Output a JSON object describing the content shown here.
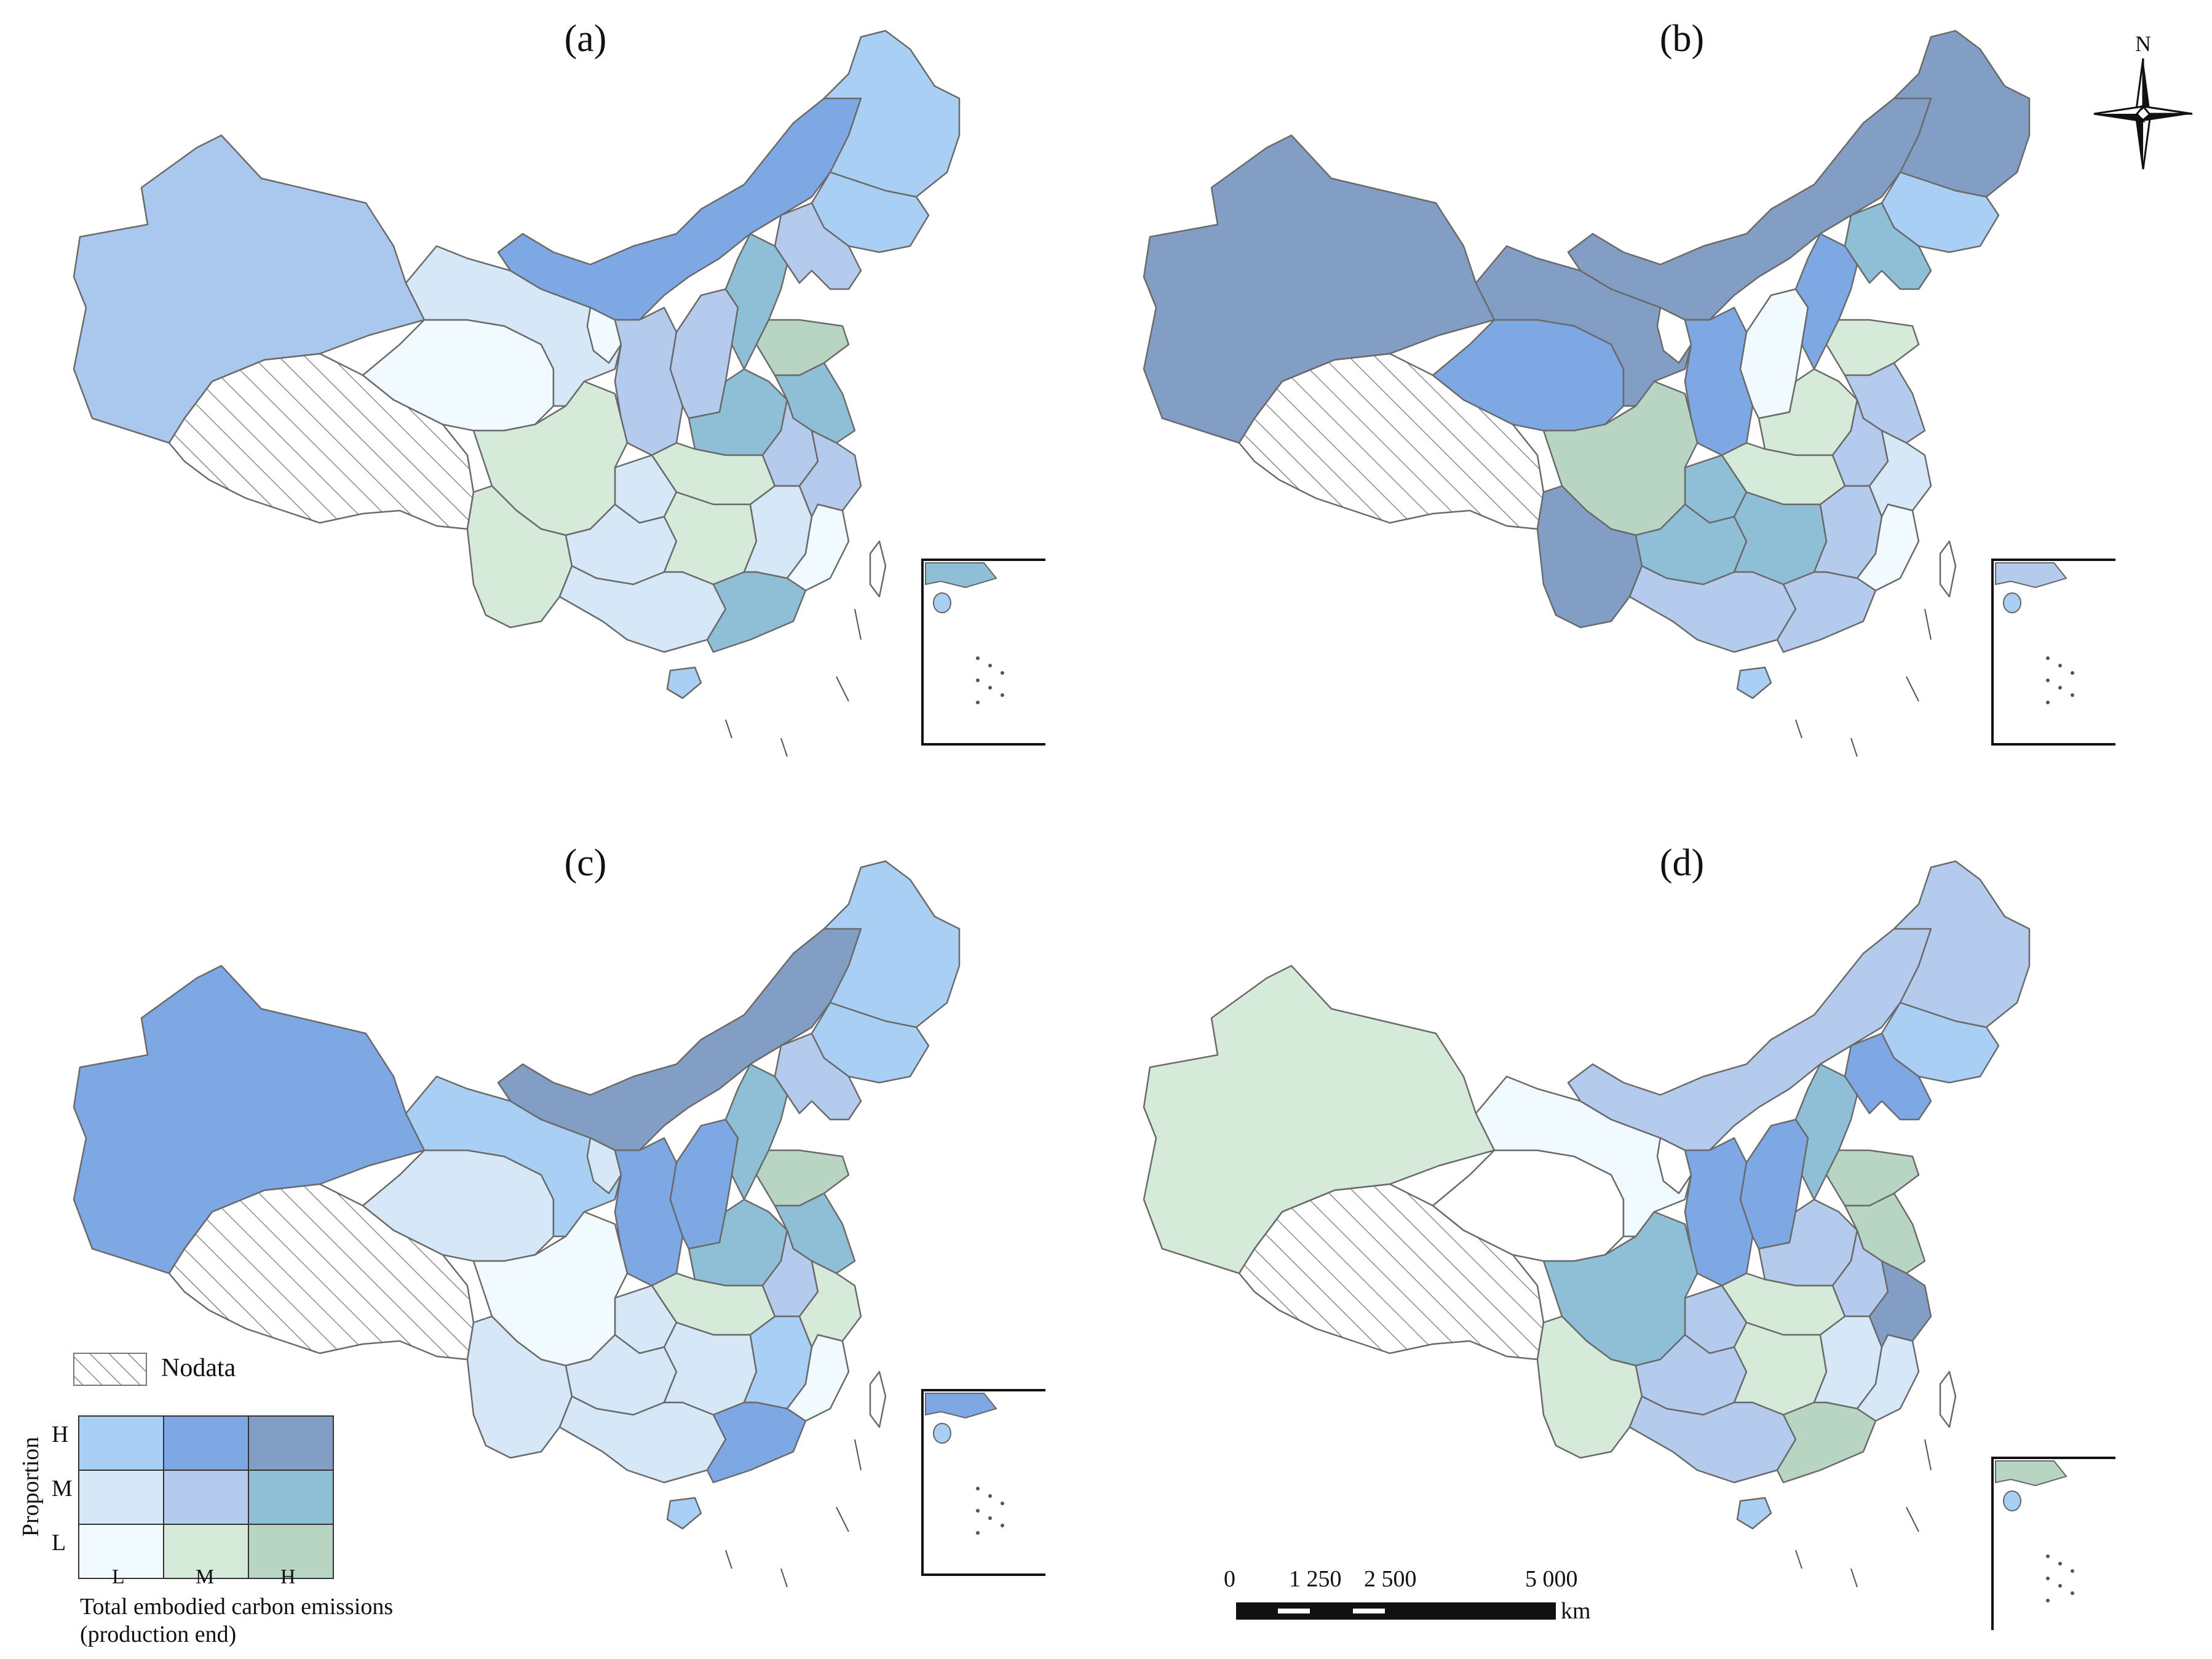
{
  "panels": [
    {
      "label": "(a)",
      "regions": {
        "xinjiang": "#aac8ee",
        "qinghai": "#f0faff",
        "gansu": "#d6e7f7",
        "innermongolia": "#7ea8e3",
        "heilongjiang": "#a9cff4",
        "jilin": "#a9cff4",
        "liaoning": "#b5cbee",
        "hebei": "#8ebfd6",
        "shanxi": "#b5cbee",
        "shandong": "#b8d5c3",
        "henan": "#8ebfd6",
        "jiangsu": "#8ebfd6",
        "anhui": "#b5cbee",
        "hubei": "#d6ead9",
        "sichuan": "#d6ead9",
        "yunnan": "#d6ead9",
        "guizhou": "#d6e7f7",
        "guangxi": "#d6e7f7",
        "guangdong": "#8ebfd6",
        "hunan": "#d6ead9",
        "jiangxi": "#d6e7f7",
        "fujian": "#f0faff",
        "zhejiang": "#b5cbee",
        "shaanxi": "#b5cbee",
        "ningxia": "#f0faff",
        "chongqing": "#d6e7f7",
        "hainan": "#a9cff4",
        "taiwan": "#ffffff"
      }
    },
    {
      "label": "(b)",
      "regions": {
        "xinjiang": "#839ec4",
        "qinghai": "#7ea8e3",
        "gansu": "#839ec4",
        "innermongolia": "#839ec4",
        "heilongjiang": "#839ec4",
        "jilin": "#a9cff4",
        "liaoning": "#8ebfd6",
        "hebei": "#7ea8e3",
        "shanxi": "#f0faff",
        "shandong": "#d6ead9",
        "henan": "#d6ead9",
        "jiangsu": "#b5cbee",
        "anhui": "#b5cbee",
        "hubei": "#d6ead9",
        "sichuan": "#b8d5c3",
        "yunnan": "#839ec4",
        "guizhou": "#8ebfd6",
        "guangxi": "#b5cbee",
        "guangdong": "#b5cbee",
        "hunan": "#8ebfd6",
        "jiangxi": "#b5cbee",
        "fujian": "#f0faff",
        "zhejiang": "#d6e7f7",
        "shaanxi": "#7ea8e3",
        "ningxia": "#ffffff",
        "chongqing": "#8ebfd6",
        "hainan": "#a9cff4",
        "taiwan": "#ffffff"
      }
    },
    {
      "label": "(c)",
      "regions": {
        "xinjiang": "#7ea8e3",
        "qinghai": "#d6e7f7",
        "gansu": "#a9cff4",
        "innermongolia": "#839ec4",
        "heilongjiang": "#a9cff4",
        "jilin": "#a9cff4",
        "liaoning": "#b5cbee",
        "hebei": "#8ebfd6",
        "shanxi": "#7ea8e3",
        "shandong": "#b8d5c3",
        "henan": "#8ebfd6",
        "jiangsu": "#8ebfd6",
        "anhui": "#b5cbee",
        "hubei": "#d6ead9",
        "sichuan": "#f0faff",
        "yunnan": "#d6e7f7",
        "guizhou": "#d6e7f7",
        "guangxi": "#d6e7f7",
        "guangdong": "#7ea8e3",
        "hunan": "#d6e7f7",
        "jiangxi": "#a9cff4",
        "fujian": "#f0faff",
        "zhejiang": "#d6ead9",
        "shaanxi": "#7ea8e3",
        "ningxia": "#d6e7f7",
        "chongqing": "#d6e7f7",
        "hainan": "#a9cff4",
        "taiwan": "#ffffff"
      }
    },
    {
      "label": "(d)",
      "regions": {
        "xinjiang": "#d6ead9",
        "qinghai": "#ffffff",
        "gansu": "#f0faff",
        "innermongolia": "#b5cbee",
        "heilongjiang": "#b5cbee",
        "jilin": "#a9cff4",
        "liaoning": "#7ea8e3",
        "hebei": "#8ebfd6",
        "shanxi": "#7ea8e3",
        "shandong": "#b8d5c3",
        "henan": "#b5cbee",
        "jiangsu": "#b8d5c3",
        "anhui": "#b5cbee",
        "hubei": "#d6ead9",
        "sichuan": "#8ebfd6",
        "yunnan": "#d6ead9",
        "guizhou": "#b5cbee",
        "guangxi": "#b5cbee",
        "guangdong": "#b8d5c3",
        "hunan": "#d6ead9",
        "jiangxi": "#d6e7f7",
        "fujian": "#d6e7f7",
        "zhejiang": "#839ec4",
        "shaanxi": "#7ea8e3",
        "ningxia": "#ffffff",
        "chongqing": "#b5cbee",
        "hainan": "#a9cff4",
        "taiwan": "#ffffff"
      }
    }
  ],
  "legend": {
    "nodata_label": "Nodata",
    "y_axis_label": "Proportion",
    "y_levels": [
      "H",
      "M",
      "L"
    ],
    "x_levels": [
      "L",
      "M",
      "H"
    ],
    "x_axis_label_line1": "Total embodied carbon emissions",
    "x_axis_label_line2": "(production end)",
    "matrix_colors": [
      [
        "#a9cff4",
        "#7ea8e3",
        "#839ec4"
      ],
      [
        "#d6e7f7",
        "#b5cbee",
        "#8ebfd6"
      ],
      [
        "#f0faff",
        "#d6ead9",
        "#b8d5c3"
      ]
    ]
  },
  "scale_bar": {
    "ticks": [
      "0",
      "1 250",
      "2 500",
      "5 000"
    ],
    "unit": "km"
  },
  "north_arrow": {
    "label": "N"
  },
  "colors": {
    "nodata_hatch": "#8a8a8a",
    "border": "#6a6a6a",
    "inset_frame": "#111111"
  }
}
